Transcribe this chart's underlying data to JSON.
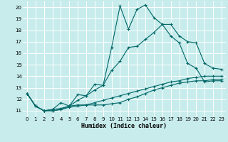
{
  "title": "",
  "xlabel": "Humidex (Indice chaleur)",
  "ylabel": "",
  "bg_color": "#c8ecec",
  "line_color": "#006666",
  "grid_color": "#ffffff",
  "xlim": [
    -0.5,
    23.5
  ],
  "ylim": [
    10.5,
    20.5
  ],
  "xticks": [
    0,
    1,
    2,
    3,
    4,
    5,
    6,
    7,
    8,
    9,
    10,
    11,
    12,
    13,
    14,
    15,
    16,
    17,
    18,
    19,
    20,
    21,
    22,
    23
  ],
  "yticks": [
    11,
    12,
    13,
    14,
    15,
    16,
    17,
    18,
    19,
    20
  ],
  "series": [
    {
      "x": [
        0,
        1,
        2,
        3,
        4,
        5,
        6,
        7,
        8,
        9,
        10,
        11,
        12,
        13,
        14,
        15,
        16,
        17,
        18,
        19,
        20,
        21,
        22,
        23
      ],
      "y": [
        12.5,
        11.4,
        11.0,
        11.1,
        11.7,
        11.4,
        12.4,
        12.3,
        13.3,
        13.2,
        16.5,
        20.1,
        18.1,
        19.8,
        20.2,
        19.1,
        18.5,
        17.5,
        16.9,
        15.1,
        14.7,
        13.5,
        13.6,
        13.6
      ]
    },
    {
      "x": [
        0,
        1,
        2,
        3,
        4,
        5,
        6,
        7,
        8,
        9,
        10,
        11,
        12,
        13,
        14,
        15,
        16,
        17,
        18,
        19,
        20,
        21,
        22,
        23
      ],
      "y": [
        12.5,
        11.4,
        11.0,
        11.1,
        11.2,
        11.4,
        11.9,
        12.3,
        12.8,
        13.2,
        14.5,
        15.3,
        16.5,
        16.6,
        17.2,
        17.8,
        18.5,
        18.5,
        17.5,
        17.0,
        16.9,
        15.1,
        14.7,
        14.6
      ]
    },
    {
      "x": [
        0,
        1,
        2,
        3,
        4,
        5,
        6,
        7,
        8,
        9,
        10,
        11,
        12,
        13,
        14,
        15,
        16,
        17,
        18,
        19,
        20,
        21,
        22,
        23
      ],
      "y": [
        12.5,
        11.4,
        11.0,
        11.0,
        11.1,
        11.4,
        11.5,
        11.5,
        11.5,
        11.5,
        11.6,
        11.7,
        12.0,
        12.2,
        12.5,
        12.8,
        13.0,
        13.2,
        13.4,
        13.5,
        13.6,
        13.6,
        13.7,
        13.7
      ]
    },
    {
      "x": [
        0,
        1,
        2,
        3,
        4,
        5,
        6,
        7,
        8,
        9,
        10,
        11,
        12,
        13,
        14,
        15,
        16,
        17,
        18,
        19,
        20,
        21,
        22,
        23
      ],
      "y": [
        12.5,
        11.4,
        11.0,
        11.0,
        11.1,
        11.3,
        11.4,
        11.5,
        11.7,
        11.9,
        12.1,
        12.3,
        12.5,
        12.7,
        12.9,
        13.1,
        13.3,
        13.5,
        13.6,
        13.8,
        13.9,
        14.0,
        14.0,
        14.0
      ]
    }
  ]
}
